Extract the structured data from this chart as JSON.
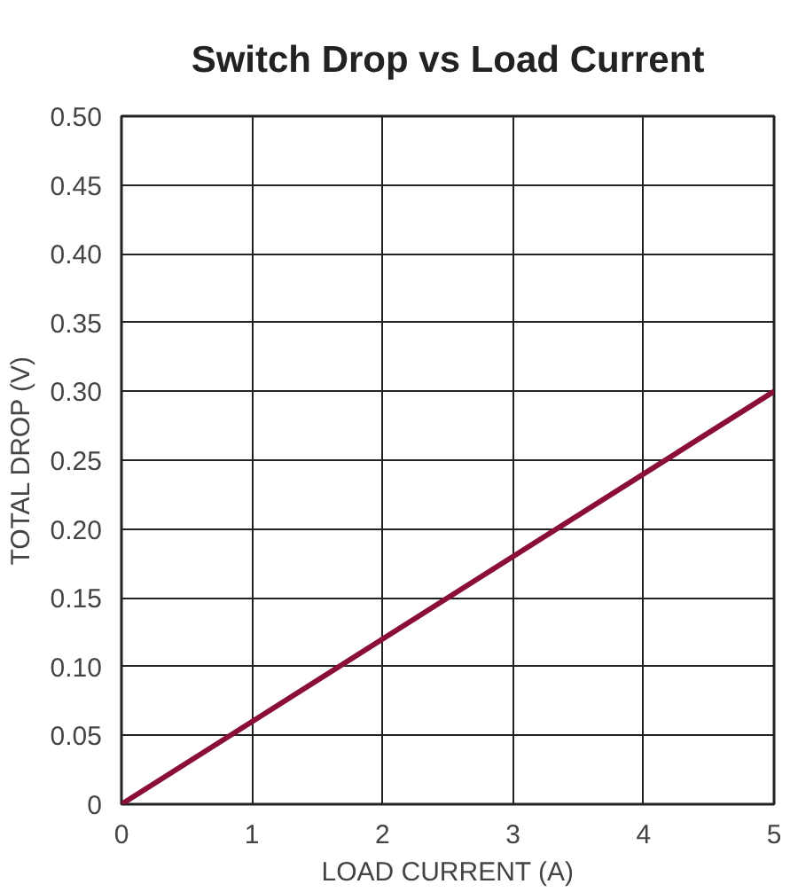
{
  "chart_data": {
    "type": "line",
    "title": "Switch Drop vs Load Current",
    "xlabel": "LOAD CURRENT (A)",
    "ylabel": "TOTAL DROP (V)",
    "x": [
      0,
      5
    ],
    "series": [
      {
        "color": "#8b0e3a",
        "values": [
          0,
          0.3
        ]
      }
    ],
    "xlim": [
      0,
      5
    ],
    "ylim": [
      0,
      0.5
    ],
    "xticks": [
      0,
      1,
      2,
      3,
      4,
      5
    ],
    "yticks": [
      {
        "value": 0,
        "label": "0"
      },
      {
        "value": 0.05,
        "label": "0.05"
      },
      {
        "value": 0.1,
        "label": "0.10"
      },
      {
        "value": 0.15,
        "label": "0.15"
      },
      {
        "value": 0.2,
        "label": "0.20"
      },
      {
        "value": 0.25,
        "label": "0.25"
      },
      {
        "value": 0.3,
        "label": "0.30"
      },
      {
        "value": 0.35,
        "label": "0.35"
      },
      {
        "value": 0.4,
        "label": "0.40"
      },
      {
        "value": 0.45,
        "label": "0.45"
      },
      {
        "value": 0.5,
        "label": "0.50"
      }
    ],
    "grid": true
  }
}
